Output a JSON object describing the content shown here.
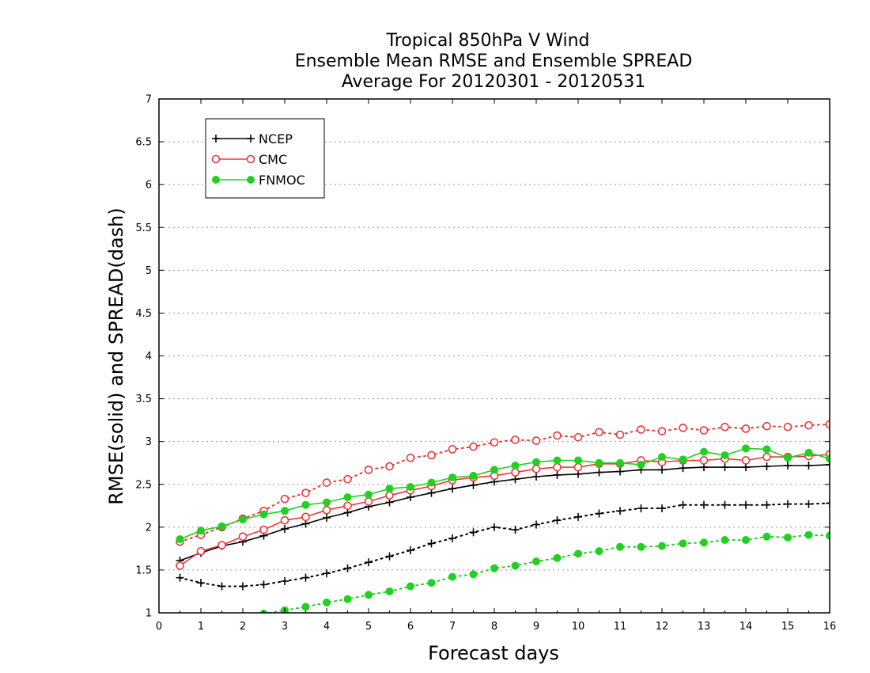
{
  "chart_data": {
    "type": "line",
    "title": [
      "Tropical 850hPa V Wind",
      "Ensemble Mean RMSE and Ensemble SPREAD",
      "Average For 20120301 - 20120531"
    ],
    "xlabel": "Forecast days",
    "ylabel": "RMSE(solid) and SPREAD(dash)",
    "xlim": [
      0,
      16
    ],
    "ylim": [
      1,
      7
    ],
    "x_ticks": [
      "0",
      "1",
      "2",
      "3",
      "4",
      "5",
      "6",
      "7",
      "8",
      "9",
      "10",
      "11",
      "12",
      "13",
      "14",
      "15",
      "16"
    ],
    "y_ticks": [
      "1",
      "1.5",
      "2",
      "2.5",
      "3",
      "3.5",
      "4",
      "4.5",
      "5",
      "5.5",
      "6",
      "6.5",
      "7"
    ],
    "grid": true,
    "legend_position": "top-left",
    "x": [
      0.5,
      1,
      1.5,
      2,
      2.5,
      3,
      3.5,
      4,
      4.5,
      5,
      5.5,
      6,
      6.5,
      7,
      7.5,
      8,
      8.5,
      9,
      9.5,
      10,
      10.5,
      11,
      11.5,
      12,
      12.5,
      13,
      13.5,
      14,
      14.5,
      15,
      15.5,
      16
    ],
    "series": [
      {
        "name": "NCEP",
        "color": "#000000",
        "marker": "plus",
        "rmse": [
          1.61,
          1.7,
          1.78,
          1.83,
          1.9,
          1.98,
          2.04,
          2.11,
          2.17,
          2.24,
          2.29,
          2.35,
          2.4,
          2.45,
          2.49,
          2.53,
          2.56,
          2.59,
          2.61,
          2.62,
          2.64,
          2.65,
          2.67,
          2.67,
          2.69,
          2.7,
          2.7,
          2.7,
          2.71,
          2.72,
          2.72,
          2.73
        ],
        "spread": [
          1.41,
          1.35,
          1.31,
          1.31,
          1.33,
          1.37,
          1.41,
          1.46,
          1.52,
          1.59,
          1.66,
          1.73,
          1.81,
          1.87,
          1.94,
          2.0,
          1.97,
          2.03,
          2.08,
          2.12,
          2.16,
          2.19,
          2.22,
          2.22,
          2.26,
          2.26,
          2.26,
          2.26,
          2.26,
          2.27,
          2.27,
          2.28
        ]
      },
      {
        "name": "CMC",
        "color": "#e8393a",
        "marker": "open-circle",
        "rmse": [
          1.55,
          1.72,
          1.79,
          1.89,
          1.97,
          2.08,
          2.12,
          2.2,
          2.25,
          2.3,
          2.37,
          2.43,
          2.48,
          2.55,
          2.58,
          2.6,
          2.64,
          2.68,
          2.7,
          2.7,
          2.74,
          2.74,
          2.78,
          2.76,
          2.78,
          2.78,
          2.8,
          2.78,
          2.82,
          2.82,
          2.83,
          2.85
        ],
        "spread": [
          1.83,
          1.91,
          2.0,
          2.1,
          2.19,
          2.33,
          2.4,
          2.52,
          2.56,
          2.67,
          2.71,
          2.81,
          2.84,
          2.91,
          2.94,
          2.99,
          3.02,
          3.01,
          3.07,
          3.05,
          3.11,
          3.08,
          3.14,
          3.12,
          3.16,
          3.13,
          3.17,
          3.15,
          3.18,
          3.17,
          3.19,
          3.2
        ]
      },
      {
        "name": "FNMOC",
        "color": "#22d022",
        "marker": "filled-circle",
        "rmse": [
          1.86,
          1.96,
          2.01,
          2.09,
          2.15,
          2.19,
          2.26,
          2.29,
          2.35,
          2.38,
          2.45,
          2.47,
          2.52,
          2.58,
          2.6,
          2.67,
          2.72,
          2.76,
          2.78,
          2.78,
          2.75,
          2.75,
          2.73,
          2.82,
          2.79,
          2.88,
          2.84,
          2.92,
          2.91,
          2.81,
          2.87,
          2.8
        ],
        "spread": [
          null,
          null,
          null,
          null,
          0.99,
          1.03,
          1.07,
          1.12,
          1.16,
          1.21,
          1.25,
          1.31,
          1.35,
          1.42,
          1.45,
          1.52,
          1.55,
          1.6,
          1.64,
          1.69,
          1.72,
          1.77,
          1.77,
          1.78,
          1.81,
          1.82,
          1.85,
          1.85,
          1.89,
          1.88,
          1.91,
          1.9
        ]
      }
    ]
  }
}
